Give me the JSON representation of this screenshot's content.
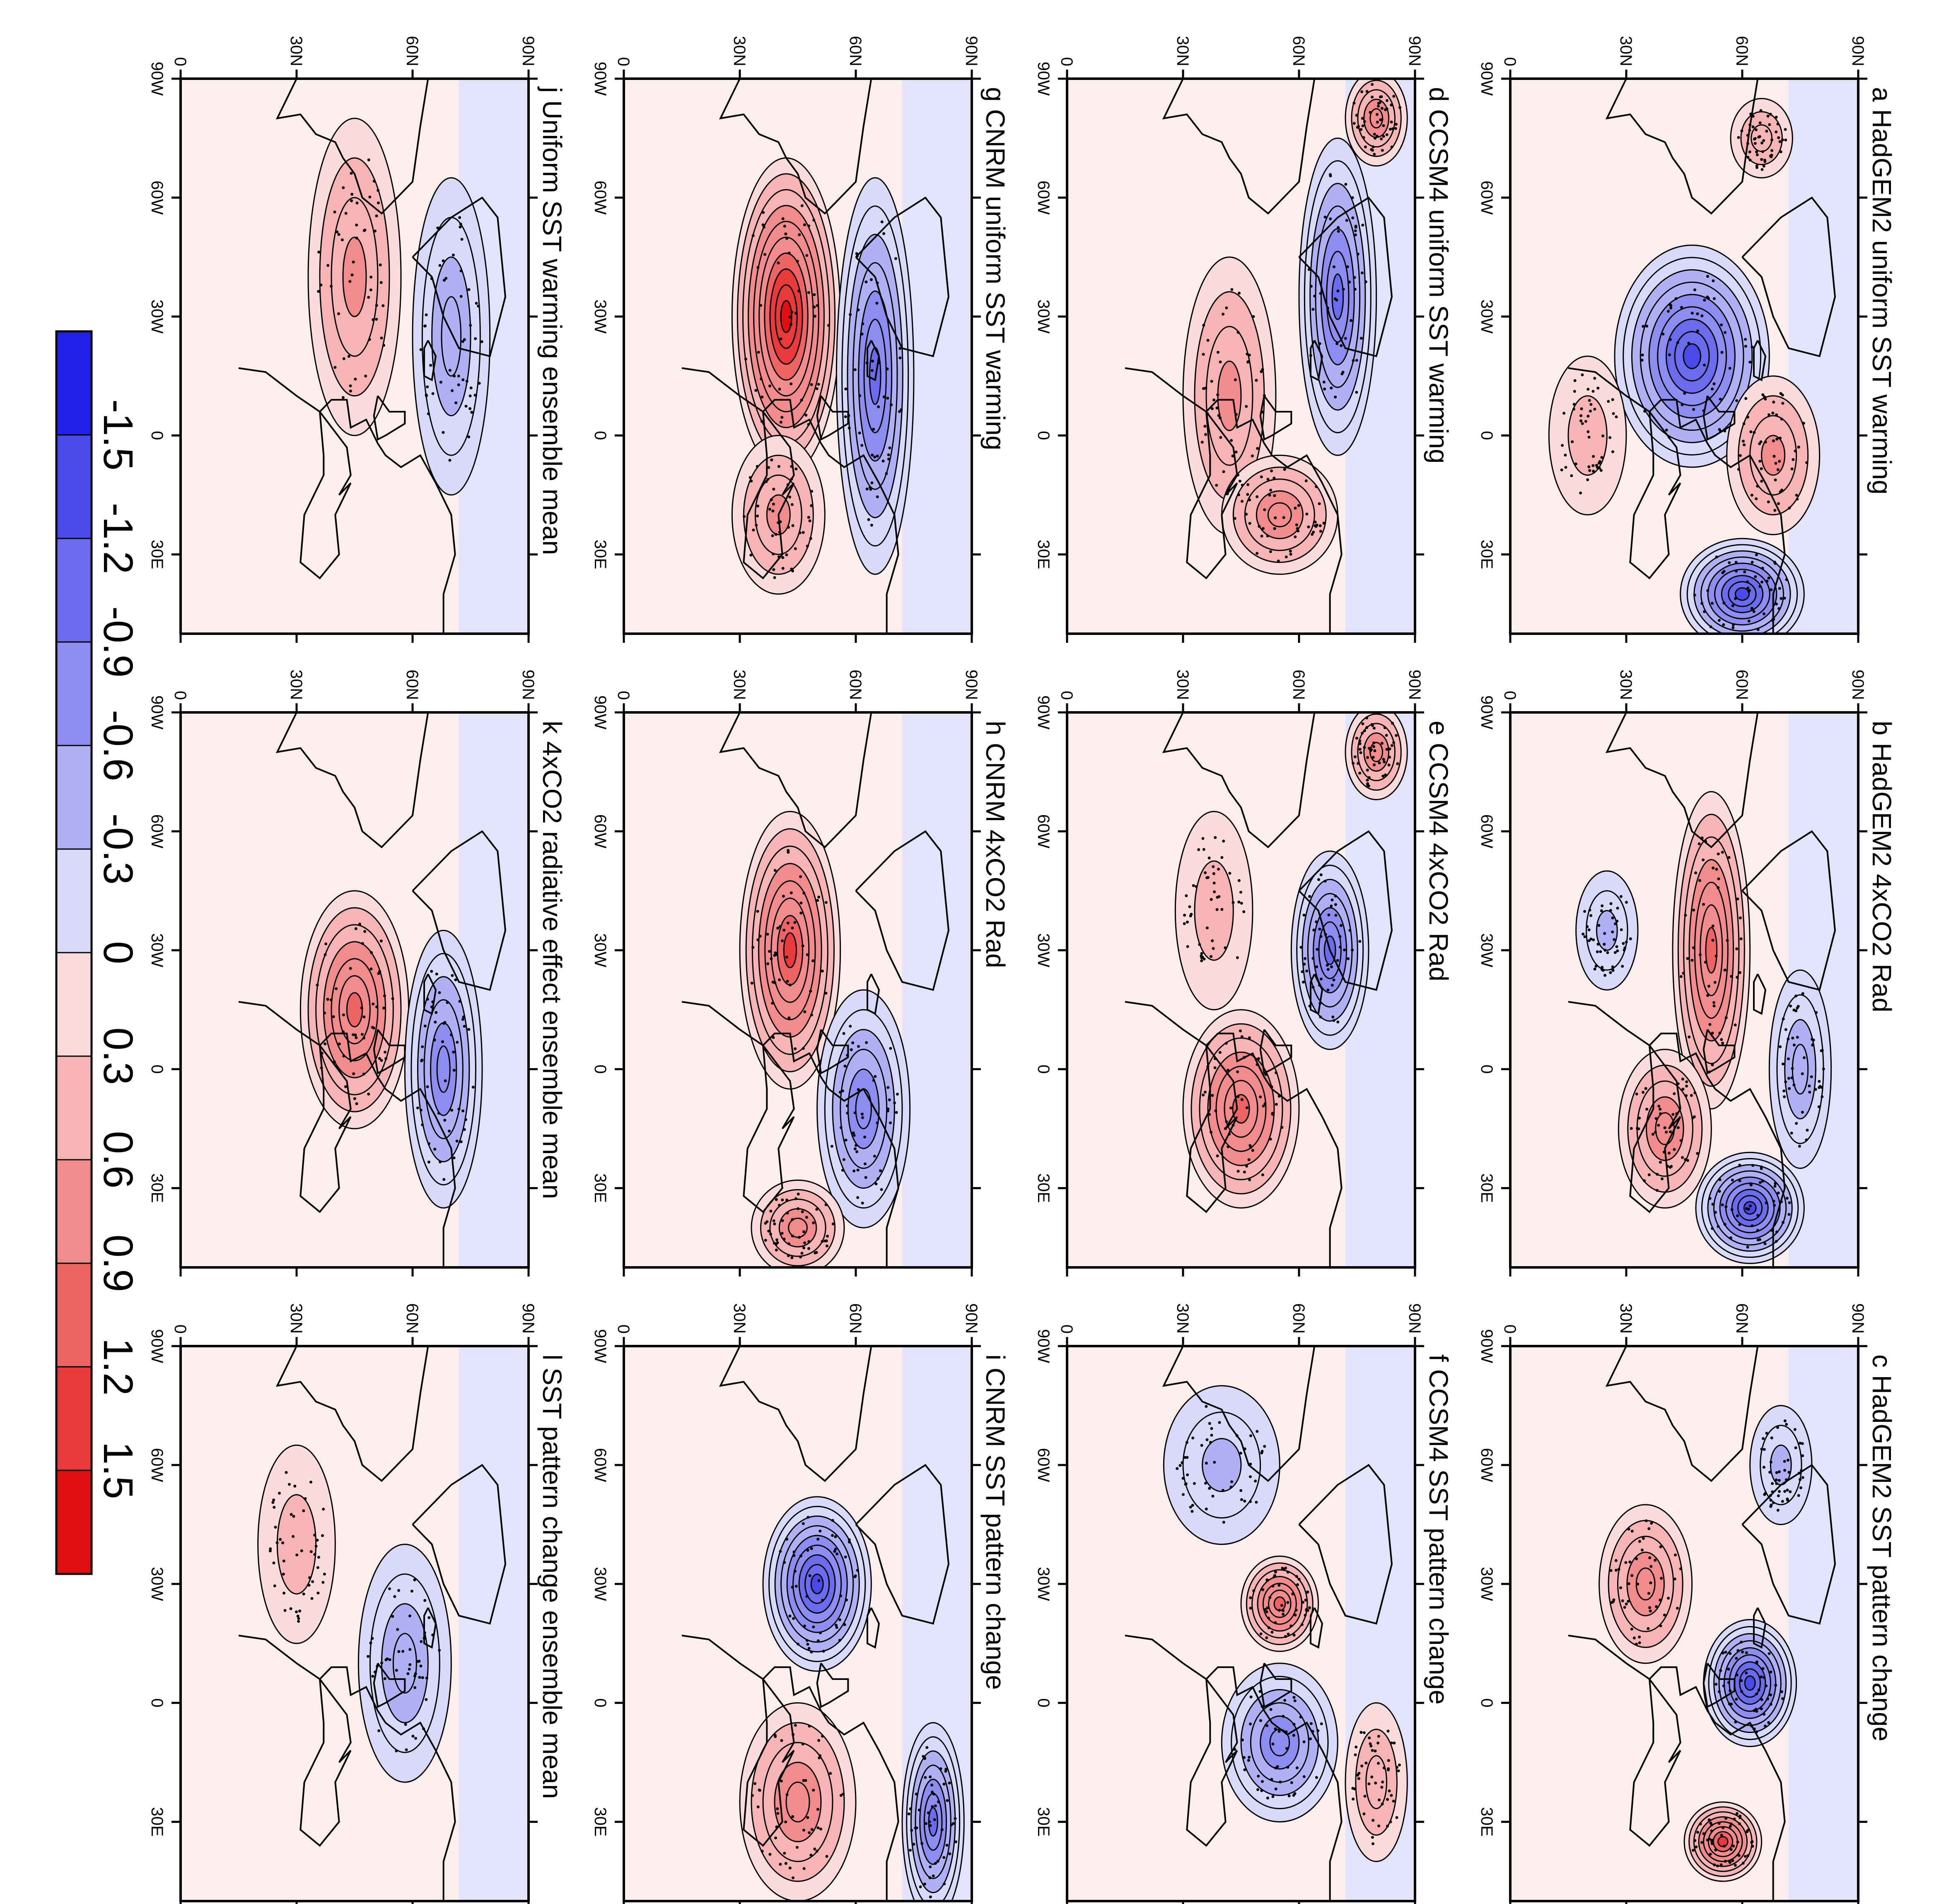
{
  "panels": [
    {
      "letter": "a",
      "title": "HadGEM2 uniform SST warming",
      "blobs": [
        {
          "lon": -20,
          "lat": 47,
          "v": -1.3,
          "rx": 28,
          "ry": 20
        },
        {
          "lon": 5,
          "lat": 68,
          "v": 0.6,
          "rx": 20,
          "ry": 12
        },
        {
          "lon": 40,
          "lat": 60,
          "v": -1.3,
          "rx": 14,
          "ry": 16
        },
        {
          "lon": 0,
          "lat": 20,
          "v": 0.3,
          "rx": 20,
          "ry": 10
        },
        {
          "lon": -75,
          "lat": 65,
          "v": 0.4,
          "rx": 10,
          "ry": 8
        }
      ]
    },
    {
      "letter": "b",
      "title": "HadGEM2 4xCO2 Rad",
      "blobs": [
        {
          "lon": -30,
          "lat": 52,
          "v": 1.0,
          "rx": 40,
          "ry": 10
        },
        {
          "lon": 15,
          "lat": 40,
          "v": 0.8,
          "rx": 20,
          "ry": 12
        },
        {
          "lon": 35,
          "lat": 62,
          "v": -1.3,
          "rx": 14,
          "ry": 14
        },
        {
          "lon": 0,
          "lat": 75,
          "v": -0.6,
          "rx": 25,
          "ry": 8
        },
        {
          "lon": -35,
          "lat": 25,
          "v": -0.4,
          "rx": 15,
          "ry": 8
        }
      ]
    },
    {
      "letter": "c",
      "title": "HadGEM2 SST pattern change",
      "blobs": [
        {
          "lon": -30,
          "lat": 35,
          "v": 0.8,
          "rx": 20,
          "ry": 12
        },
        {
          "lon": -5,
          "lat": 62,
          "v": -1.3,
          "rx": 16,
          "ry": 12
        },
        {
          "lon": 35,
          "lat": 55,
          "v": 1.2,
          "rx": 10,
          "ry": 10
        },
        {
          "lon": -60,
          "lat": 70,
          "v": -0.4,
          "rx": 15,
          "ry": 8
        }
      ]
    },
    {
      "letter": "d",
      "title": "CCSM4 uniform SST warming",
      "blobs": [
        {
          "lon": -35,
          "lat": 70,
          "v": -1.0,
          "rx": 40,
          "ry": 10
        },
        {
          "lon": -10,
          "lat": 42,
          "v": 0.6,
          "rx": 35,
          "ry": 12
        },
        {
          "lon": 20,
          "lat": 55,
          "v": 0.8,
          "rx": 15,
          "ry": 15
        },
        {
          "lon": -80,
          "lat": 80,
          "v": 0.8,
          "rx": 12,
          "ry": 8
        }
      ]
    },
    {
      "letter": "e",
      "title": "CCSM4 4xCO2 Rad",
      "blobs": [
        {
          "lon": 10,
          "lat": 45,
          "v": 1.0,
          "rx": 25,
          "ry": 15
        },
        {
          "lon": -30,
          "lat": 68,
          "v": -1.0,
          "rx": 25,
          "ry": 10
        },
        {
          "lon": -80,
          "lat": 80,
          "v": 0.8,
          "rx": 12,
          "ry": 8
        },
        {
          "lon": -40,
          "lat": 38,
          "v": 0.3,
          "rx": 25,
          "ry": 10
        }
      ]
    },
    {
      "letter": "f",
      "title": "CCSM4 SST pattern change",
      "blobs": [
        {
          "lon": -25,
          "lat": 55,
          "v": 1.0,
          "rx": 12,
          "ry": 10
        },
        {
          "lon": 10,
          "lat": 55,
          "v": -0.9,
          "rx": 20,
          "ry": 15
        },
        {
          "lon": -60,
          "lat": 40,
          "v": -0.5,
          "rx": 20,
          "ry": 15
        },
        {
          "lon": 20,
          "lat": 80,
          "v": 0.5,
          "rx": 20,
          "ry": 8
        }
      ]
    },
    {
      "letter": "g",
      "title": "CNRM uniform SST warming",
      "blobs": [
        {
          "lon": -30,
          "lat": 42,
          "v": 1.5,
          "rx": 40,
          "ry": 14
        },
        {
          "lon": -15,
          "lat": 65,
          "v": -1.1,
          "rx": 50,
          "ry": 10
        },
        {
          "lon": 20,
          "lat": 40,
          "v": 0.6,
          "rx": 20,
          "ry": 12
        }
      ]
    },
    {
      "letter": "h",
      "title": "CNRM 4xCO2 Rad",
      "blobs": [
        {
          "lon": -30,
          "lat": 43,
          "v": 1.2,
          "rx": 35,
          "ry": 13
        },
        {
          "lon": 10,
          "lat": 62,
          "v": -0.9,
          "rx": 30,
          "ry": 12
        },
        {
          "lon": 40,
          "lat": 45,
          "v": 0.8,
          "rx": 12,
          "ry": 12
        }
      ]
    },
    {
      "letter": "i",
      "title": "CNRM SST pattern change",
      "blobs": [
        {
          "lon": -30,
          "lat": 50,
          "v": -1.3,
          "rx": 22,
          "ry": 14
        },
        {
          "lon": 25,
          "lat": 45,
          "v": 0.8,
          "rx": 25,
          "ry": 15
        },
        {
          "lon": 30,
          "lat": 80,
          "v": -1.0,
          "rx": 25,
          "ry": 8
        }
      ]
    },
    {
      "letter": "j",
      "title": "Uniform SST warming ensemble mean",
      "blobs": [
        {
          "lon": -40,
          "lat": 45,
          "v": 0.6,
          "rx": 40,
          "ry": 12
        },
        {
          "lon": -25,
          "lat": 70,
          "v": -0.6,
          "rx": 40,
          "ry": 10
        }
      ]
    },
    {
      "letter": "k",
      "title": "4xCO2 radiative effect ensemble mean",
      "blobs": [
        {
          "lon": -15,
          "lat": 45,
          "v": 1.0,
          "rx": 30,
          "ry": 14
        },
        {
          "lon": 0,
          "lat": 68,
          "v": -0.9,
          "rx": 35,
          "ry": 10
        }
      ]
    },
    {
      "letter": "l",
      "title": "SST pattern change ensemble mean",
      "blobs": [
        {
          "lon": -10,
          "lat": 58,
          "v": -0.6,
          "rx": 30,
          "ry": 12
        },
        {
          "lon": -40,
          "lat": 30,
          "v": 0.3,
          "rx": 25,
          "ry": 10
        }
      ]
    }
  ],
  "axes": {
    "lat_ticks": [
      "0",
      "30N",
      "60N",
      "90N"
    ],
    "lon_ticks": [
      "90W",
      "60W",
      "30W",
      "0",
      "30E"
    ]
  },
  "colorbar": {
    "levels": [
      "-1.5",
      "-1.2",
      "-0.9",
      "-0.6",
      "-0.3",
      "0",
      "0.3",
      "0.6",
      "0.9",
      "1.2",
      "1.5"
    ],
    "colors": [
      "#2020e8",
      "#4a4aeb",
      "#6b6bee",
      "#8d8df1",
      "#b0b0f5",
      "#d9d9fa",
      "#fbdcdc",
      "#f7b4b4",
      "#f28c8c",
      "#ee6464",
      "#e83a3a",
      "#e01010"
    ]
  }
}
